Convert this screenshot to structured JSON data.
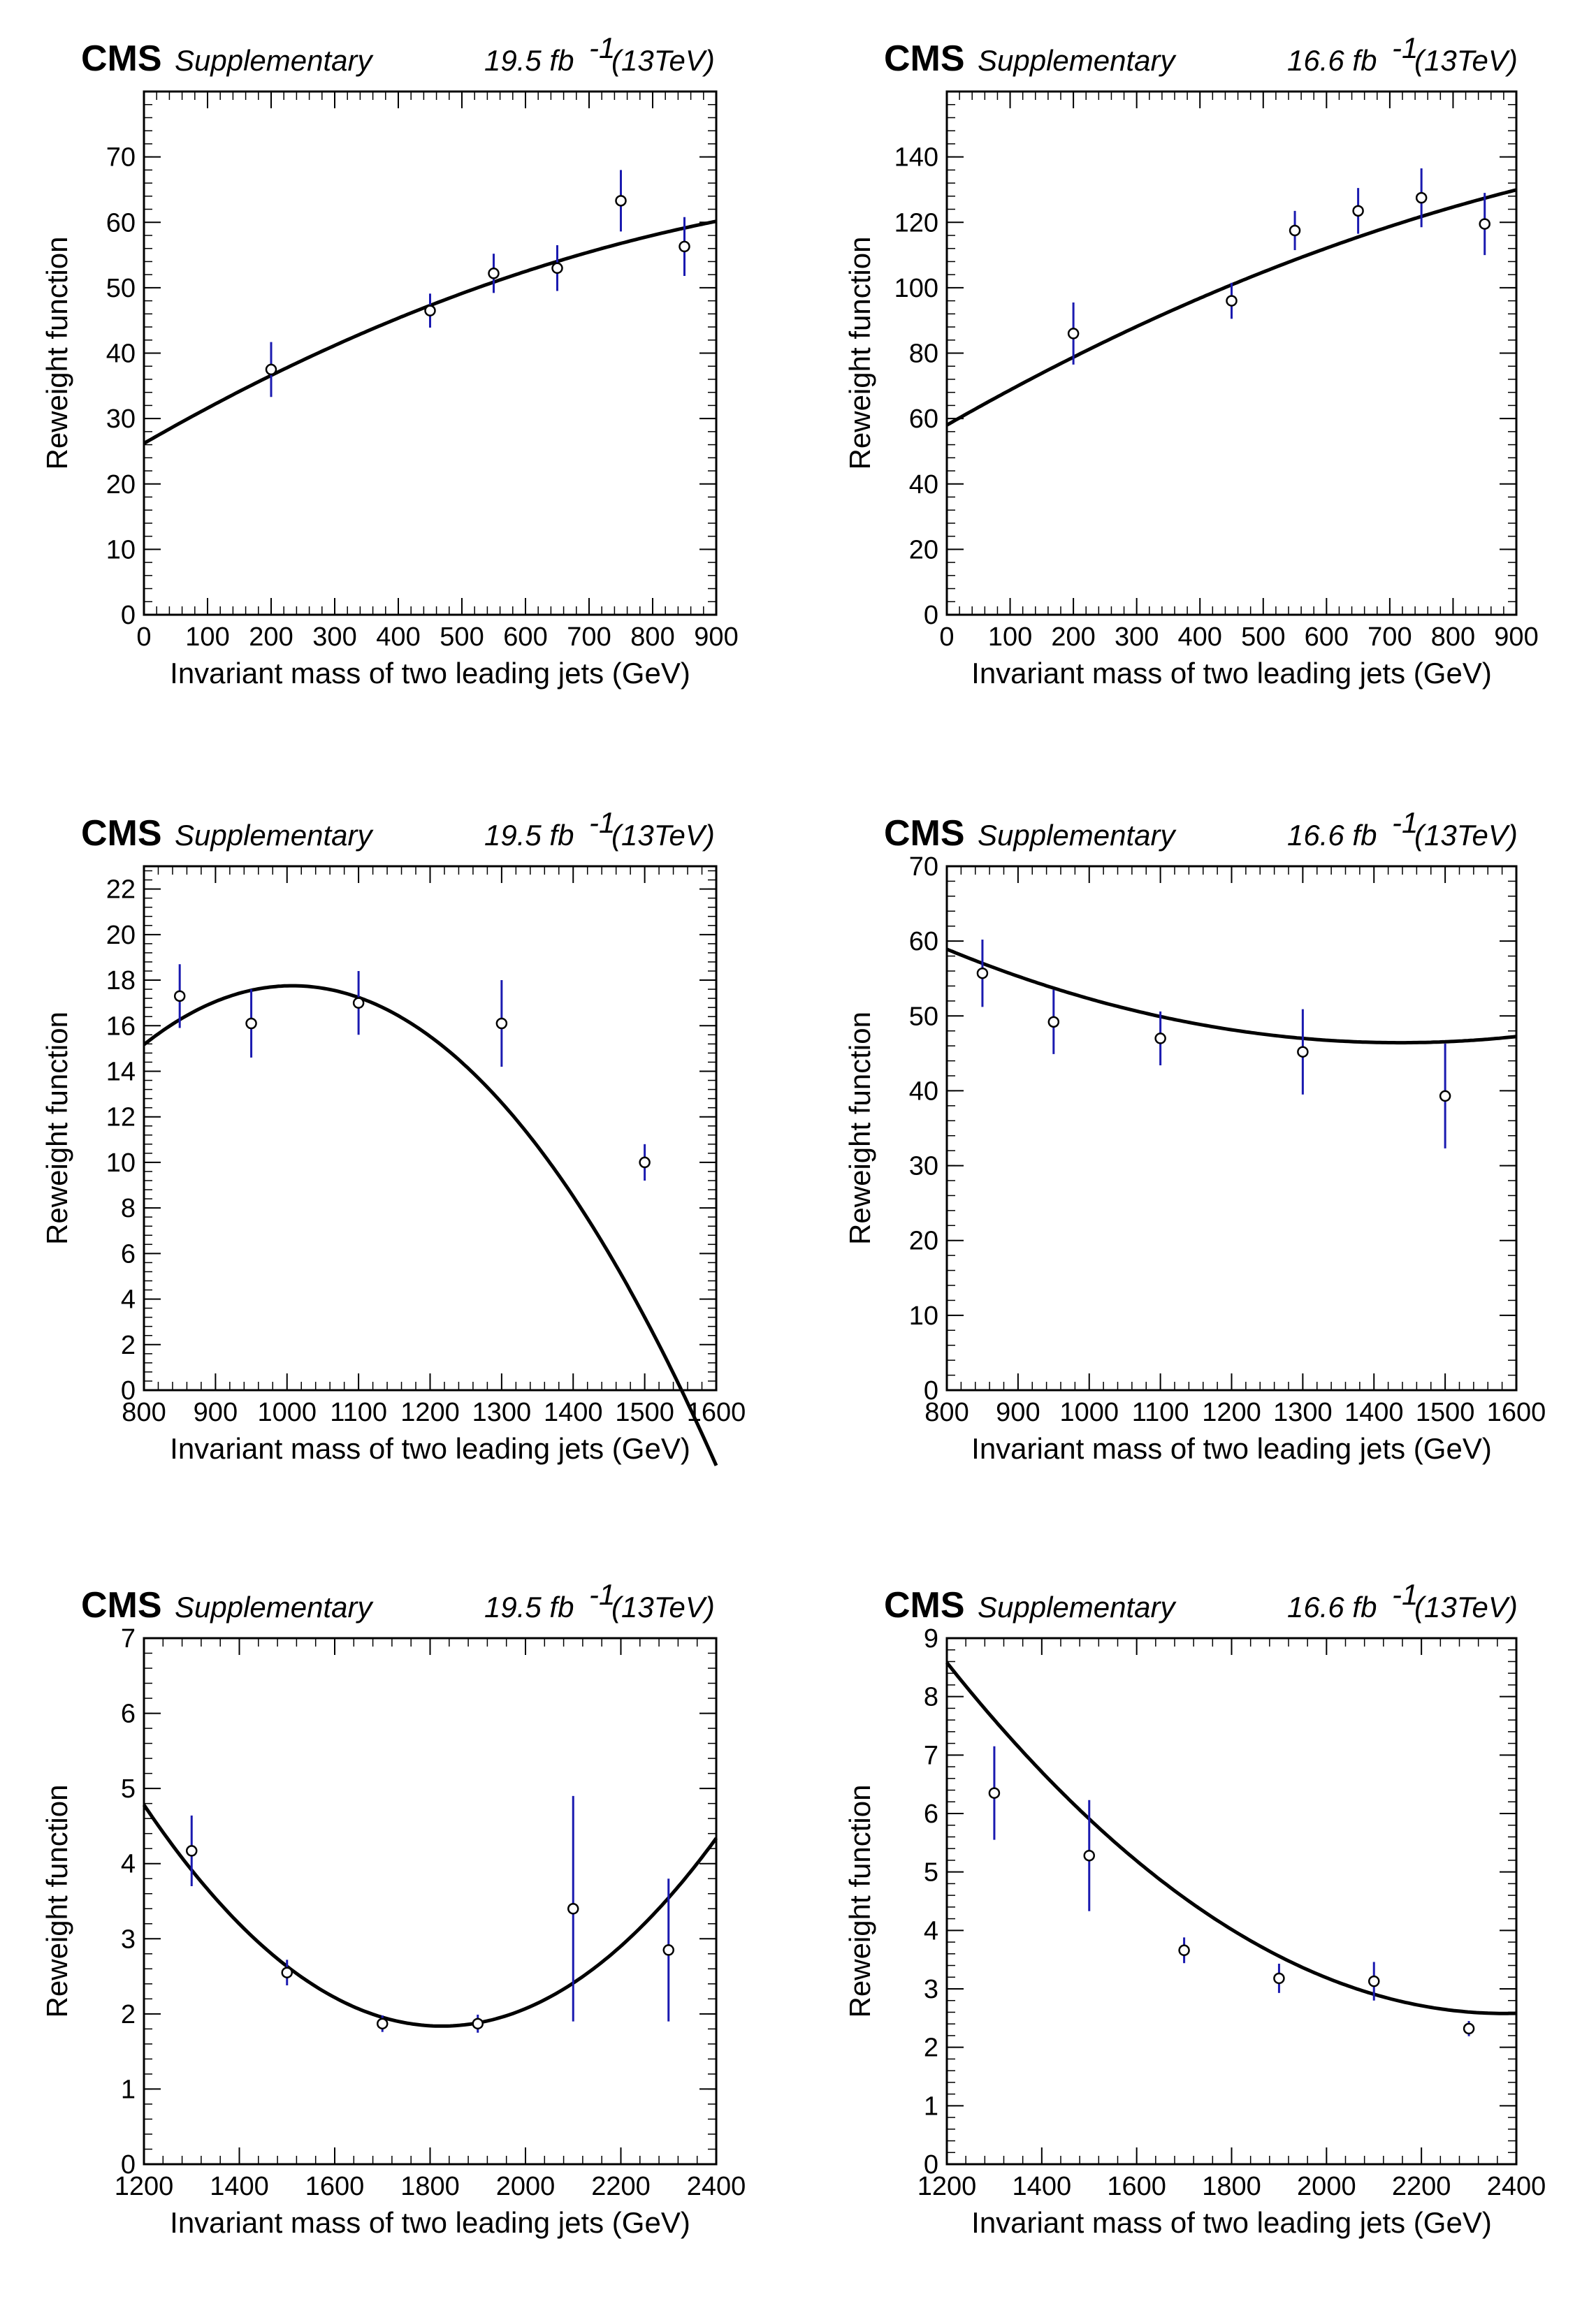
{
  "figure": {
    "experiment": "CMS",
    "label": "Supplementary",
    "ylabel": "Reweight function",
    "xlabel": "Invariant mass of two leading jets (GeV)"
  },
  "chart_data": [
    {
      "type": "scatter",
      "lumi_value": "19.5 fb",
      "lumi_sup": "-1",
      "energy": "(13TeV)",
      "xlim": [
        0,
        900
      ],
      "ylim": [
        0,
        80
      ],
      "xticks": [
        0,
        100,
        200,
        300,
        400,
        500,
        600,
        700,
        800,
        900
      ],
      "yticks": [
        0,
        10,
        20,
        30,
        40,
        50,
        60,
        70
      ],
      "points": [
        {
          "x": 200,
          "y": 37.5,
          "err": 4.2
        },
        {
          "x": 450,
          "y": 46.5,
          "err": 2.6
        },
        {
          "x": 550,
          "y": 52.2,
          "err": 3.0
        },
        {
          "x": 650,
          "y": 53.0,
          "err": 3.5
        },
        {
          "x": 750,
          "y": 63.3,
          "err": 4.7
        },
        {
          "x": 850,
          "y": 56.3,
          "err": 4.5
        }
      ],
      "fit": {
        "type": "quadratic",
        "coeffs": [
          26.2,
          0.056,
          -2.03e-05
        ]
      }
    },
    {
      "type": "scatter",
      "lumi_value": "16.6 fb",
      "lumi_sup": "-1",
      "energy": "(13TeV)",
      "xlim": [
        0,
        900
      ],
      "ylim": [
        0,
        160
      ],
      "xticks": [
        0,
        100,
        200,
        300,
        400,
        500,
        600,
        700,
        800,
        900
      ],
      "yticks": [
        0,
        20,
        40,
        60,
        80,
        100,
        120,
        140
      ],
      "points": [
        {
          "x": 200,
          "y": 86,
          "err": 9.5
        },
        {
          "x": 450,
          "y": 96,
          "err": 5.5
        },
        {
          "x": 550,
          "y": 117.5,
          "err": 6.0
        },
        {
          "x": 650,
          "y": 123.5,
          "err": 7.0
        },
        {
          "x": 750,
          "y": 127.5,
          "err": 9.0
        },
        {
          "x": 850,
          "y": 119.5,
          "err": 9.5
        }
      ],
      "fit": {
        "type": "quadratic",
        "coeffs": [
          58.0,
          0.1107,
          -3.42e-05
        ]
      }
    },
    {
      "type": "scatter",
      "lumi_value": "19.5 fb",
      "lumi_sup": "-1",
      "energy": "(13TeV)",
      "xlim": [
        800,
        1600
      ],
      "ylim": [
        0,
        23
      ],
      "xticks": [
        800,
        900,
        1000,
        1100,
        1200,
        1300,
        1400,
        1500,
        1600
      ],
      "yticks": [
        0,
        2,
        4,
        6,
        8,
        10,
        12,
        14,
        16,
        18,
        20,
        22
      ],
      "points": [
        {
          "x": 850,
          "y": 17.3,
          "err": 1.4
        },
        {
          "x": 950,
          "y": 16.1,
          "err": 1.5
        },
        {
          "x": 1100,
          "y": 17.0,
          "err": 1.4
        },
        {
          "x": 1300,
          "y": 16.1,
          "err": 1.9
        },
        {
          "x": 1500,
          "y": 10.0,
          "err": 0.8
        }
      ],
      "fit": {
        "type": "quadratic",
        "coeffs": [
          -43.15,
          0.1209,
          -6e-05
        ]
      }
    },
    {
      "type": "scatter",
      "lumi_value": "16.6 fb",
      "lumi_sup": "-1",
      "energy": "(13TeV)",
      "xlim": [
        800,
        1600
      ],
      "ylim": [
        0,
        70
      ],
      "xticks": [
        800,
        900,
        1000,
        1100,
        1200,
        1300,
        1400,
        1500,
        1600
      ],
      "yticks": [
        0,
        10,
        20,
        30,
        40,
        50,
        60,
        70
      ],
      "points": [
        {
          "x": 850,
          "y": 55.7,
          "err": 4.5
        },
        {
          "x": 950,
          "y": 49.2,
          "err": 4.3
        },
        {
          "x": 1100,
          "y": 47.0,
          "err": 3.6
        },
        {
          "x": 1300,
          "y": 45.2,
          "err": 5.7
        },
        {
          "x": 1500,
          "y": 39.3,
          "err": 7.0
        }
      ],
      "fit": {
        "type": "quadratic",
        "coeffs": [
          110.0,
          -0.0885,
          3.08e-05
        ]
      }
    },
    {
      "type": "scatter",
      "lumi_value": "19.5 fb",
      "lumi_sup": "-1",
      "energy": "(13TeV)",
      "xlim": [
        1200,
        2400
      ],
      "ylim": [
        0,
        7
      ],
      "xticks": [
        1200,
        1400,
        1600,
        1800,
        2000,
        2200,
        2400
      ],
      "yticks": [
        0,
        1,
        2,
        3,
        4,
        5,
        6,
        7
      ],
      "points": [
        {
          "x": 1300,
          "y": 4.17,
          "err": 0.47
        },
        {
          "x": 1500,
          "y": 2.55,
          "err": 0.17
        },
        {
          "x": 1700,
          "y": 1.87,
          "err": 0.11
        },
        {
          "x": 1900,
          "y": 1.87,
          "err": 0.12
        },
        {
          "x": 2100,
          "y": 3.4,
          "err": 1.5
        },
        {
          "x": 2300,
          "y": 2.85,
          "err": 0.95
        }
      ],
      "fit": {
        "type": "quadratic",
        "coeffs": [
          26.97,
          -0.02755,
          7.55e-06
        ]
      }
    },
    {
      "type": "scatter",
      "lumi_value": "16.6 fb",
      "lumi_sup": "-1",
      "energy": "(13TeV)",
      "xlim": [
        1200,
        2400
      ],
      "ylim": [
        0,
        9
      ],
      "xticks": [
        1200,
        1400,
        1600,
        1800,
        2000,
        2200,
        2400
      ],
      "yticks": [
        0,
        1,
        2,
        3,
        4,
        5,
        6,
        7,
        8,
        9
      ],
      "points": [
        {
          "x": 1300,
          "y": 6.35,
          "err": 0.8
        },
        {
          "x": 1500,
          "y": 5.28,
          "err": 0.95
        },
        {
          "x": 1700,
          "y": 3.66,
          "err": 0.22
        },
        {
          "x": 1900,
          "y": 3.18,
          "err": 0.25
        },
        {
          "x": 2100,
          "y": 3.13,
          "err": 0.33
        },
        {
          "x": 2300,
          "y": 2.32,
          "err": 0.13
        }
      ],
      "fit": {
        "type": "quadratic",
        "coeffs": [
          27.11,
          -0.02066,
          4.35e-06
        ]
      }
    }
  ]
}
